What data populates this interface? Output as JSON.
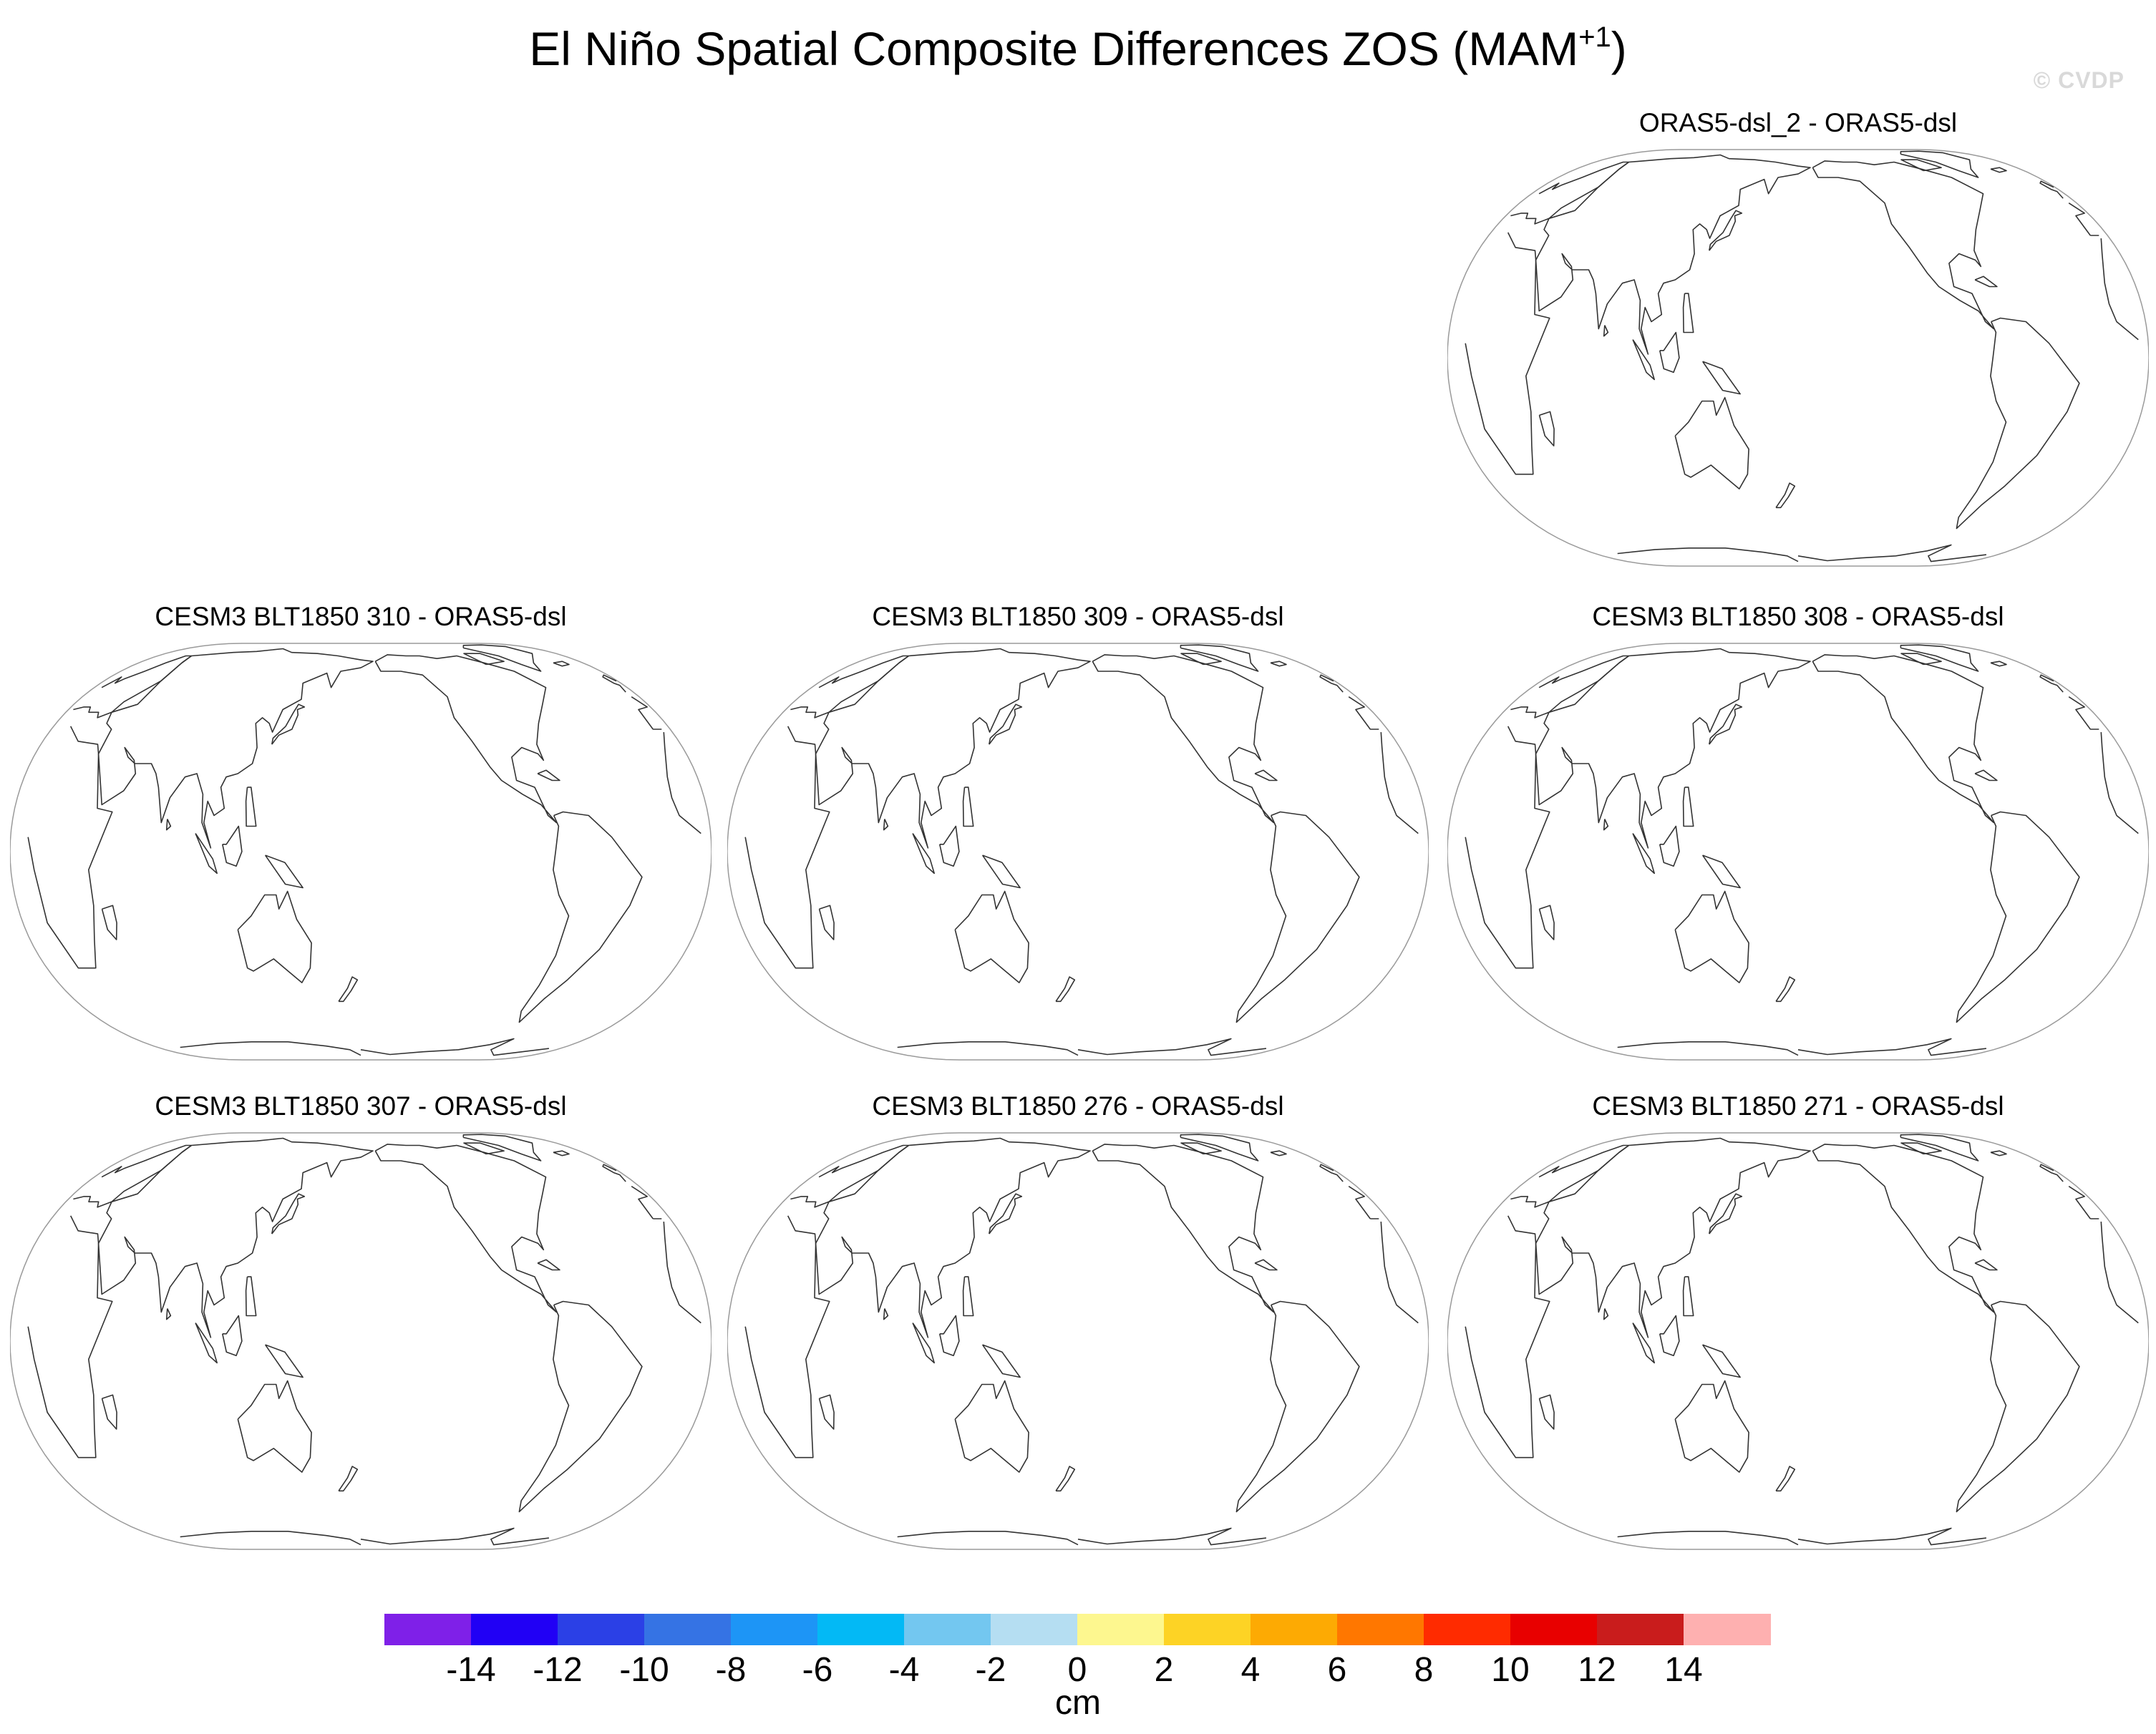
{
  "figure": {
    "title_main": "El Niño Spatial Composite Differences ZOS (MAM",
    "title_superscript": "+1",
    "title_close": ")",
    "watermark": "© CVDP"
  },
  "panels": [
    {
      "title": "ORAS5-dsl_2 - ORAS5-dsl",
      "slot": "top-right"
    },
    {
      "title": "CESM3 BLT1850 310 - ORAS5-dsl",
      "slot": "middle-left"
    },
    {
      "title": "CESM3 BLT1850 309 - ORAS5-dsl",
      "slot": "middle-center"
    },
    {
      "title": "CESM3 BLT1850 308 - ORAS5-dsl",
      "slot": "middle-right"
    },
    {
      "title": "CESM3 BLT1850 307 - ORAS5-dsl",
      "slot": "bottom-left"
    },
    {
      "title": "CESM3 BLT1850 276 - ORAS5-dsl",
      "slot": "bottom-center"
    },
    {
      "title": "CESM3 BLT1850 271 - ORAS5-dsl",
      "slot": "bottom-right"
    }
  ],
  "map": {
    "projection": "Robinson-like, Pacific-centered",
    "central_longitude": 180,
    "contents": "coastlines only, no shaded field"
  },
  "colorbar": {
    "units": "cm",
    "tick_labels": [
      "-14",
      "-12",
      "-10",
      "-8",
      "-6",
      "-4",
      "-2",
      "0",
      "2",
      "4",
      "6",
      "8",
      "10",
      "12",
      "14"
    ],
    "colors": [
      "#7f20e8",
      "#2100f5",
      "#2b40e6",
      "#3573e4",
      "#1d95f6",
      "#03b9f5",
      "#73c7f0",
      "#b5def2",
      "#fdf78f",
      "#fdd325",
      "#fdaa03",
      "#ff7700",
      "#ff2b00",
      "#e80000",
      "#c91c1c",
      "#feb0b0"
    ]
  }
}
